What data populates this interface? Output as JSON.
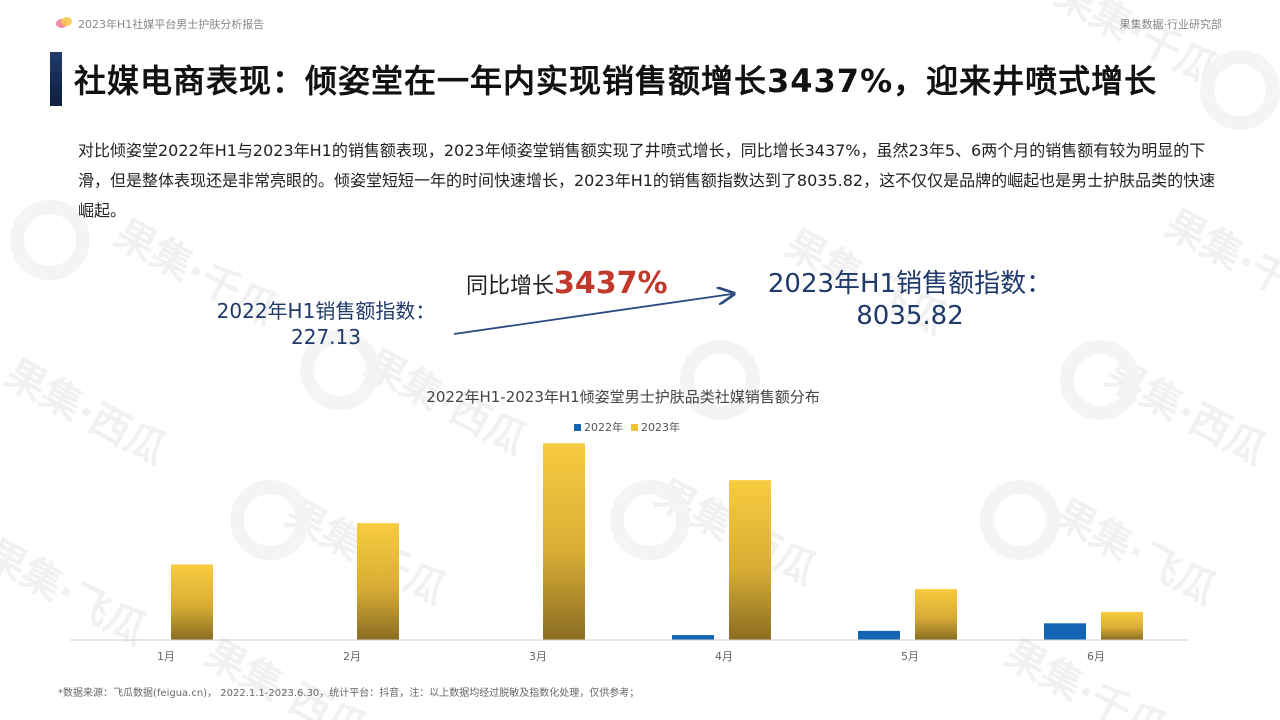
{
  "header": {
    "report_title": "2023年H1社媒平台男士护肤分析报告",
    "org": "果集数据·行业研究部"
  },
  "page_title": "社媒电商表现：倾姿堂在一年内实现销售额增长3437%，迎来井喷式增长",
  "description": "对比倾姿堂2022年H1与2023年H1的销售额表现，2023年倾姿堂销售额实现了井喷式增长，同比增长3437%，虽然23年5、6两个月的销售额有较为明显的下滑，但是整体表现还是非常亮眼的。倾姿堂短短一年的时间快速增长，2023年H1的销售额指数达到了8035.82，这不仅仅是品牌的崛起也是男士护肤品类的快速崛起。",
  "kpi": {
    "left_label": "2022年H1销售额指数：",
    "left_value": "227.13",
    "growth_prefix": "同比增长",
    "growth_value": "3437%",
    "right_label": "2023年H1销售额指数：",
    "right_value": "8035.82"
  },
  "watermark": {
    "text_a": "果集·千瓜",
    "text_b": "果集·西瓜",
    "text_c": "果集·飞瓜"
  },
  "chart_data": {
    "type": "bar",
    "title": "2022年H1-2023年H1倾姿堂男士护肤品类社媒销售额分布",
    "categories": [
      "1月",
      "2月",
      "3月",
      "4月",
      "5月",
      "6月"
    ],
    "series": [
      {
        "name": "2022年",
        "values": [
          0,
          0,
          0,
          28,
          52,
          95
        ]
      },
      {
        "name": "2023年",
        "values": [
          430,
          665,
          1120,
          910,
          290,
          160
        ]
      }
    ],
    "ylim": [
      0,
      1150
    ],
    "colors": {
      "2022年": "#1565b5",
      "2023年_top": "#f7cc3f",
      "2023年_bottom": "#8a6d22"
    },
    "legend_position": "top-center",
    "grid": false
  },
  "footnote": "*数据来源：飞瓜数据(feigua.cn)， 2022.1.1-2023.6.30，统计平台：抖音，注：以上数据均经过脱敏及指数化处理，仅供参考；"
}
